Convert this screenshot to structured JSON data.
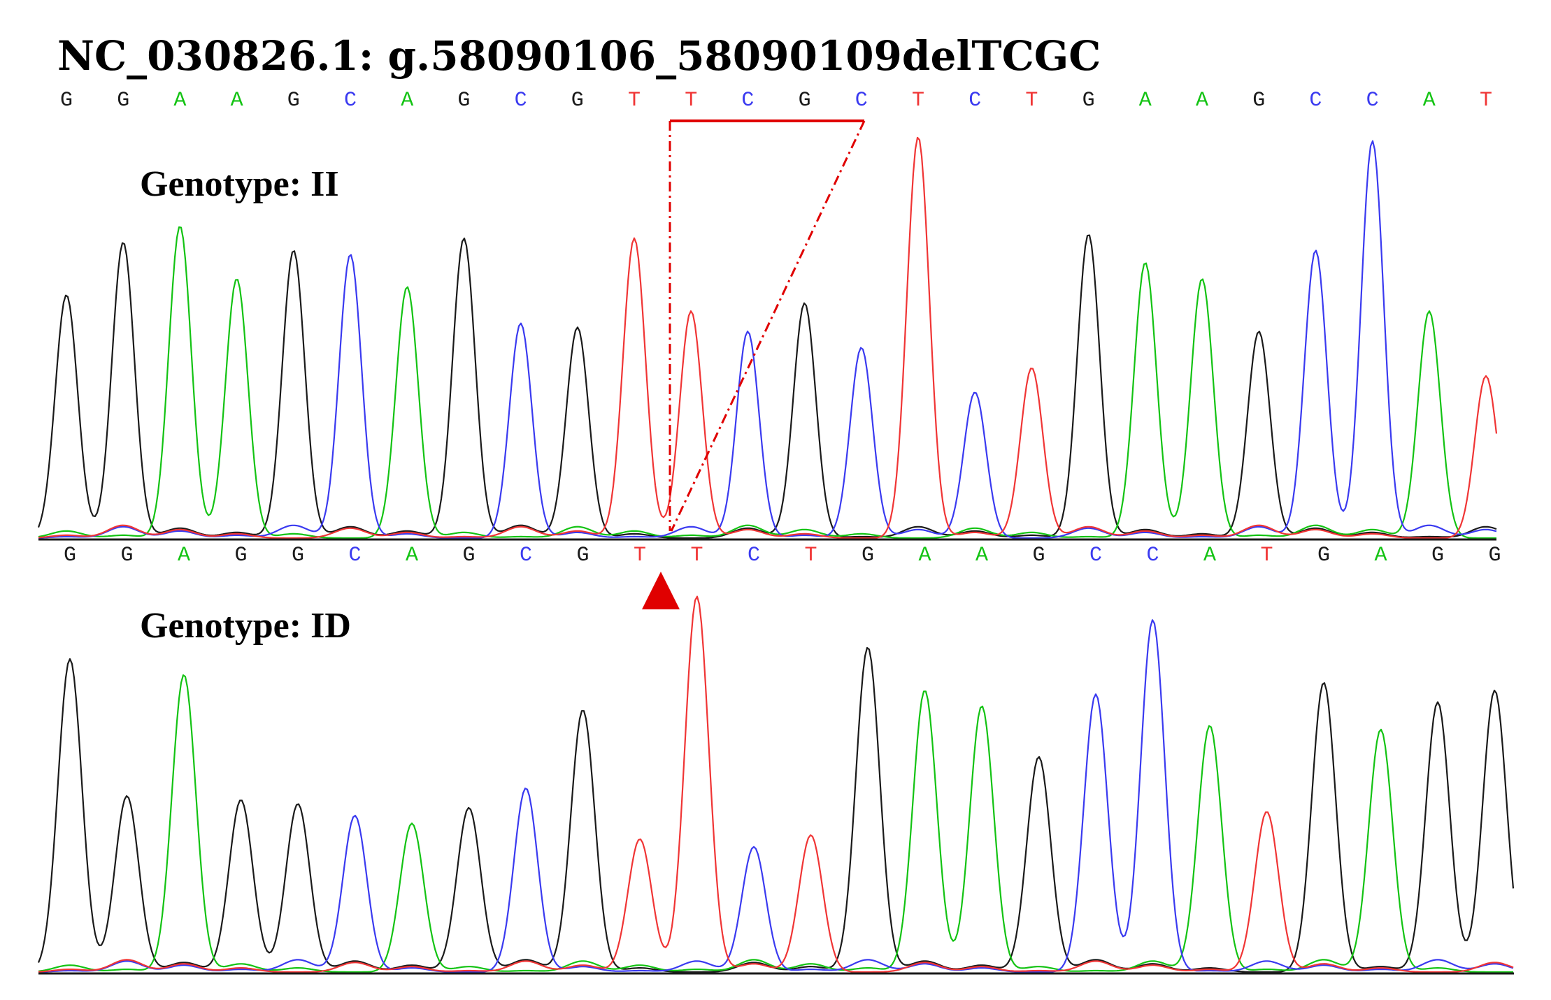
{
  "title": "NC_030826.1: g.58090106_58090109delTCGC",
  "colors": {
    "G": "#1a1a1a",
    "A": "#13c313",
    "C": "#3a3af0",
    "T": "#f03535",
    "annotation": "#e00000"
  },
  "panels": [
    {
      "id": "II",
      "label": "Genotype: II",
      "reference_bases": [
        "G",
        "G",
        "A",
        "A",
        "G",
        "C",
        "A",
        "G",
        "C",
        "G",
        "T",
        "T",
        "C",
        "G",
        "C",
        "T",
        "C",
        "T",
        "G",
        "A",
        "A",
        "G",
        "C",
        "C",
        "A",
        "T"
      ],
      "peak_heights": [
        0.6,
        0.73,
        0.77,
        0.64,
        0.71,
        0.7,
        0.62,
        0.74,
        0.53,
        0.52,
        0.74,
        0.56,
        0.51,
        0.58,
        0.47,
        0.99,
        0.36,
        0.42,
        0.75,
        0.68,
        0.64,
        0.51,
        0.71,
        0.98,
        0.56,
        0.4
      ]
    },
    {
      "id": "ID",
      "label": "Genotype: ID",
      "reference_bases": [
        "G",
        "G",
        "A",
        "G",
        "G",
        "C",
        "A",
        "G",
        "C",
        "G",
        "T",
        "T",
        "C",
        "T",
        "G",
        "A",
        "A",
        "G",
        "C",
        "C",
        "A",
        "T",
        "G",
        "A",
        "G",
        "G"
      ],
      "peak_heights": [
        0.8,
        0.45,
        0.76,
        0.44,
        0.43,
        0.4,
        0.38,
        0.42,
        0.47,
        0.67,
        0.34,
        0.96,
        0.32,
        0.35,
        0.83,
        0.72,
        0.68,
        0.55,
        0.71,
        0.9,
        0.63,
        0.41,
        0.74,
        0.62,
        0.69,
        0.72
      ]
    }
  ],
  "deletion": {
    "deleted_bases": [
      "T",
      "C",
      "G",
      "C"
    ]
  }
}
